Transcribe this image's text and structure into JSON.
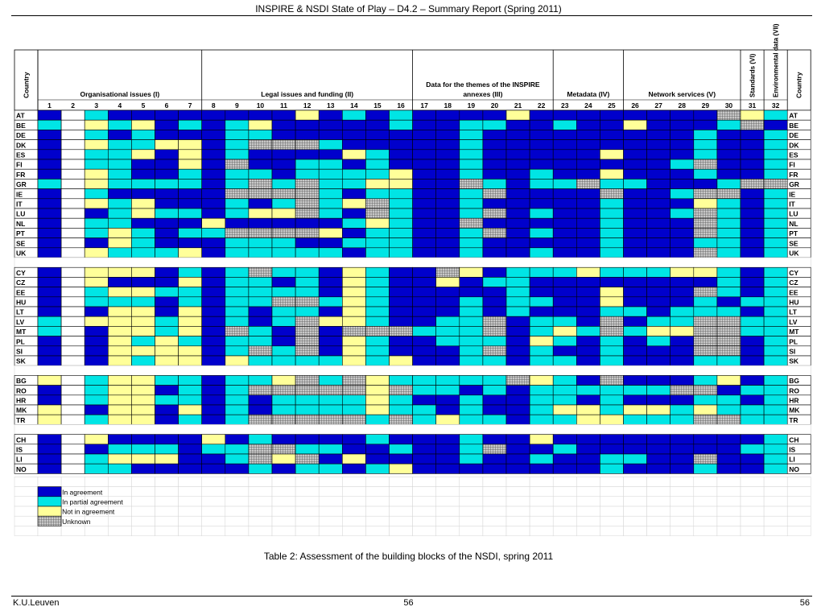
{
  "header": {
    "title": "INSPIRE & NSDI State of Play – D4.2 – Summary Report (Spring 2011)"
  },
  "footer": {
    "left": "K.U.Leuven",
    "center": "56",
    "right": "56"
  },
  "caption": "Table 2: Assessment of the building blocks of the NSDI, spring 2011",
  "colors": {
    "A": "#0000cc",
    "P": "#00e5e5",
    "N": "#ffff99",
    "U": "#b0b0b0",
    "white": "#ffffff"
  },
  "table": {
    "country_header": "Country",
    "groups": [
      {
        "label": "Organisational issues (I)",
        "cols": [
          1,
          7
        ]
      },
      {
        "label": "Legal issues and funding (II)",
        "cols": [
          8,
          16
        ]
      },
      {
        "label": "Data for the themes of the INSPIRE annexes (III)",
        "cols": [
          17,
          22
        ]
      },
      {
        "label": "Metadata (IV)",
        "cols": [
          23,
          25
        ]
      },
      {
        "label": "Network services (V)",
        "cols": [
          26,
          30
        ]
      },
      {
        "label": "Standards (VI)",
        "cols": [
          31,
          31
        ]
      },
      {
        "label": "Environmental data (VII)",
        "cols": [
          32,
          32
        ]
      }
    ],
    "col_numbers": [
      "1",
      "2",
      "3",
      "4",
      "5",
      "6",
      "7",
      "8",
      "9",
      "10",
      "11",
      "12",
      "13",
      "14",
      "15",
      "16",
      "17",
      "18",
      "19",
      "20",
      "21",
      "22",
      "23",
      "24",
      "25",
      "26",
      "27",
      "28",
      "29",
      "30",
      "31",
      "32"
    ],
    "blocks": [
      [
        {
          "c": "AT",
          "s": "A4PAAAAAAAANAPAPAAAANAAAAAAAAUNP",
          "v": "4"
        },
        {
          "c": "BE",
          "s": "P3NPNAPAPNAAAAAPAAPPAAPAANAAAPUAP",
          "v": "3"
        },
        {
          "c": "DE",
          "s": "A6PAPAAAPPAAAAAAAAPAAAAAAAAAPAAP",
          "v": "6"
        },
        {
          "c": "DK",
          "s": "A5NPPNNAPUUUPAAAAAPAAAAAAAAAPAAP",
          "v": "5"
        },
        {
          "c": "ES",
          "s": "A6PPNANAPAAAANPAAAPAAAAANAAAPAAP",
          "v": "6"
        },
        {
          "c": "FI",
          "s": "A5PPAANAUAAPPAPAAAPAAAAAAAAPUAAP",
          "v": "5"
        },
        {
          "c": "FR",
          "s": "A5NPAAPAPPAPPPPNAAPAAPAANAAAPAAP",
          "v": "5"
        },
        {
          "c": "GR",
          "s": "P2NPPPPAPUPUPPNNAAUPAPPUPPAAAPUUP",
          "v": "2"
        },
        {
          "c": "IE",
          "s": "A4PAAAAAUUUUPAPPAAPUAAAAUAAPUUAP",
          "v": "4"
        },
        {
          "c": "IT",
          "s": "A5NPNAAAPAPUPNUPAAPAAAAAPAAANPAP",
          "v": "5"
        },
        {
          "c": "LU",
          "s": "A3APNPPAPNNUPAUPAAPUAPAAPAAPUPAP",
          "v": "3"
        },
        {
          "c": "NL",
          "s": "A5PPAAANAAAAAPNPAAUAAAAAPAAAUPAP",
          "v": "5"
        },
        {
          "c": "PT",
          "s": "A5PNPAPPUUUUNAPPAAPUAPAAPAAAUPAP",
          "v": "5"
        },
        {
          "c": "SE",
          "s": "A6ANPAAAPPPAAPPPAAPAAAAAPAAAPPAP",
          "v": "6"
        },
        {
          "c": "UK",
          "s": "A5NPPPNAPPPPPAPPAAPAAPAAPAAAUPAP",
          "v": "5"
        }
      ],
      [
        {
          "c": "CY",
          "s": "A2NNNAPAPUPPANPAAUNAPPPNPPPNNPAP",
          "v": "2"
        },
        {
          "c": "CZ",
          "s": "A5NAAANAPPAPANPAANAPPAAAAAAAAPAP",
          "v": "5"
        },
        {
          "c": "EE",
          "s": "A5PNNPPAPPPPANPAAAAAPAAANAAAUPAP",
          "v": "5"
        },
        {
          "c": "HU",
          "s": "A3PPPAPAPPUUPNPAAAPAPPAANAAAPAPP",
          "v": "3"
        },
        {
          "c": "LT",
          "s": "A5ANNANAPAPPANPAAAPAPAAAPPAPPPAP",
          "v": "5"
        },
        {
          "c": "LV",
          "s": "P2NNNPNAPAPUNNPAAPPUAPPAUAPPUUPP",
          "v": "2"
        },
        {
          "c": "MT",
          "s": "P2ANNPNAUPAUAUUUPPPUAPNPUPNNUUPP",
          "v": "2"
        },
        {
          "c": "PL",
          "s": "A4ANPNPAPPAUANPAAPPPANPAPAPAUUAP",
          "v": "4"
        },
        {
          "c": "SI",
          "s": "A5ANNNNAPUPUANPAAAPUAPAAPAAAUUAP",
          "v": "5"
        },
        {
          "c": "SK",
          "s": "A4ANPNNANPPPPNPNAAPPAPPAPAAAPPAP",
          "v": "4"
        }
      ],
      [
        {
          "c": "BG",
          "s": "N2PNNPPAPPNUPUNPPPPPUNPAUAAAPNAP",
          "v": "2"
        },
        {
          "c": "RO",
          "s": "A3PNNAPAPUUUUUNUPPAPAPPPPPPUUAPP",
          "v": "3"
        },
        {
          "c": "HR",
          "s": "A4PNNPPAPAPPPPNPAAPAAPPAPAAAPPAP",
          "v": "4"
        },
        {
          "c": "MK",
          "s": "N1ANNANAPAPPPPNPPAPAAPNNPNNPNPPP",
          "v": "1"
        },
        {
          "c": "TR",
          "s": "N1PNNAPAPUUUUUPUPNPPAPPNNPPPUUPP",
          "v": "1"
        }
      ],
      [
        {
          "c": "CH",
          "s": "A6NAAAANAPAAAAPAAAPAANAAAAAAAAAP",
          "v": "6"
        },
        {
          "c": "IS",
          "s": "A4APPPAPPUUPPAAPAAPUAAPAAAAAAAPP",
          "v": "4"
        },
        {
          "c": "LI",
          "s": "A3PNNNAAPUNUANAAAAPAAPAAPPAAUAAP",
          "v": "3"
        },
        {
          "c": "NO",
          "s": "A6PPAAAAAPAPPAPNAAAAAAAAPAAAPAAP",
          "v": "6"
        }
      ]
    ],
    "legend": [
      {
        "key": "A",
        "label": "In agreement"
      },
      {
        "key": "P",
        "label": "In partial agreement"
      },
      {
        "key": "N",
        "label": "Not in agreement"
      },
      {
        "key": "U",
        "label": "Unknown"
      }
    ]
  }
}
